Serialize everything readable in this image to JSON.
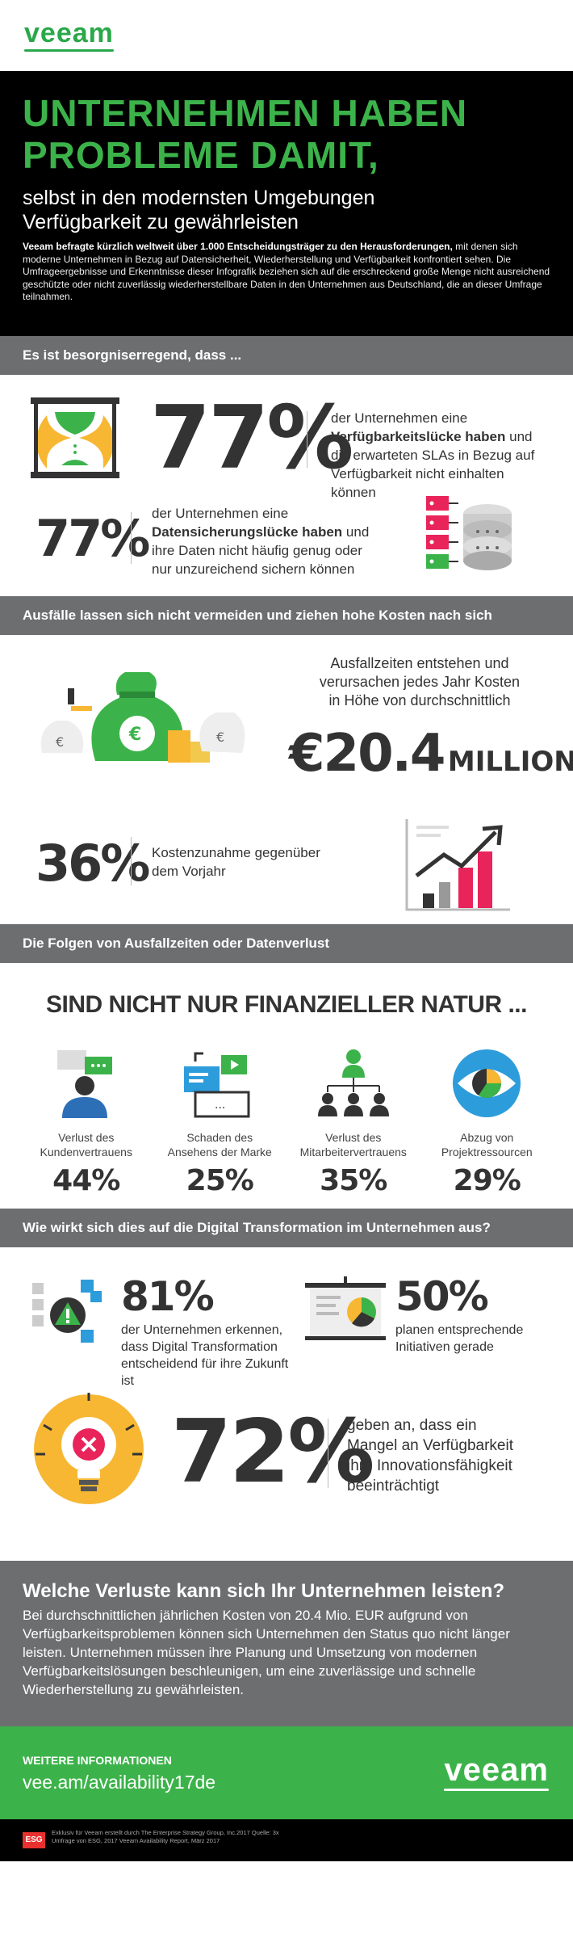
{
  "header": {
    "logo_text": "veeam"
  },
  "hero": {
    "title_line1": "UNTERNEHMEN HABEN",
    "title_line2": "PROBLEME DAMIT,",
    "subtitle_line1": "selbst in den modernsten Umgebungen",
    "subtitle_line2": "Verfügbarkeit zu gewährleisten",
    "intro_bold": "Veeam befragte kürzlich weltweit über 1.000 Entscheidungsträger zu den Herausforderungen,",
    "intro_text": "mit denen sich moderne Unternehmen in Bezug auf Datensicherheit, Wiederherstellung und Verfügbarkeit konfrontiert sehen. Die Umfrageergebnisse und Erkenntnisse dieser Infografik beziehen sich auf die erschreckend große Menge nicht ausreichend geschützte oder nicht zuverlässig wiederherstellbare Daten in den Unternehmen aus Deutschland, die an dieser Umfrage teilnahmen."
  },
  "section1": {
    "bar": "Es ist besorgniserregend, dass ...",
    "stat1": {
      "value": "77%",
      "pre": "der Unternehmen eine",
      "bold": "Verfügbarkeitslücke haben",
      "post": "und die erwarteten SLAs in Bezug auf Verfügbarkeit nicht einhalten können"
    },
    "stat2": {
      "value": "77%",
      "pre": "der Unternehmen eine",
      "bold": "Datensicherungslücke haben",
      "post": "und ihre Daten nicht häufig genug oder nur unzureichend sichern können"
    }
  },
  "section2": {
    "bar": "Ausfälle lassen sich nicht vermeiden und ziehen hohe Kosten nach sich",
    "cost_text_line1": "Ausfallzeiten entstehen und",
    "cost_text_line2": "verursachen jedes Jahr Kosten",
    "cost_text_line3": "in Höhe von durchschnittlich",
    "cost_value": "€20.4",
    "cost_unit": "MILLIONEN",
    "stat": {
      "value": "36%",
      "line1": "Kostenzunahme gegenüber",
      "line2": "dem Vorjahr"
    },
    "bag_symbol": "€"
  },
  "section3": {
    "bar": "Die Folgen von Ausfallzeiten oder Datenverlust",
    "title": "SIND NICHT NUR FINANZIELLER NATUR ...",
    "items": [
      {
        "line1": "Verlust des",
        "line2": "Kundenvertrauens",
        "value": "44%"
      },
      {
        "line1": "Schaden des",
        "line2": "Ansehens der Marke",
        "value": "25%"
      },
      {
        "line1": "Verlust des",
        "line2": "Mitarbeitervertrauens",
        "value": "35%"
      },
      {
        "line1": "Abzug von",
        "line2": "Projektressourcen",
        "value": "29%"
      }
    ]
  },
  "section4": {
    "bar": "Wie wirkt sich dies auf die Digital Transformation im Unternehmen aus?",
    "stat1": {
      "value": "81%",
      "text": "der Unternehmen erkennen, dass Digital Transformation entscheidend für ihre Zukunft ist"
    },
    "stat2": {
      "value": "50%",
      "text": "planen entsprechende Initiativen gerade"
    },
    "stat3": {
      "value": "72%",
      "line1": "geben an, dass ein",
      "line2": "Mangel an Verfügbarkeit",
      "line3": "ihre Innovationsfähigkeit",
      "line4": "beeinträchtigt"
    }
  },
  "closing": {
    "title": "Welche Verluste kann sich Ihr Unternehmen leisten?",
    "text": "Bei durchschnittlichen jährlichen Kosten von 20.4 Mio. EUR aufgrund von Verfügbarkeitsproblemen können sich Unternehmen den Status quo nicht länger leisten. Unternehmen müssen ihre Planung und Umsetzung von modernen Verfügbarkeitslösungen beschleunigen, um eine zuverlässige und schnelle Wiederherstellung zu gewährleisten."
  },
  "more": {
    "label": "WEITERE INFORMATIONEN",
    "url": "vee.am/availability17de",
    "logo_text": "veeam"
  },
  "footer": {
    "esg": "ESG",
    "line1": "Exklusiv für Veeam erstellt durch The Enterprise Strategy Group, Inc.2017 Quelle: 3x",
    "line2": "Umfrage von ESG, 2017 Veeam Availability Report, März 2017"
  },
  "colors": {
    "green": "#3cb34a",
    "gray_bar": "#6d6e70",
    "black": "#000000",
    "red": "#e8245a",
    "yellow": "#f7b733"
  }
}
